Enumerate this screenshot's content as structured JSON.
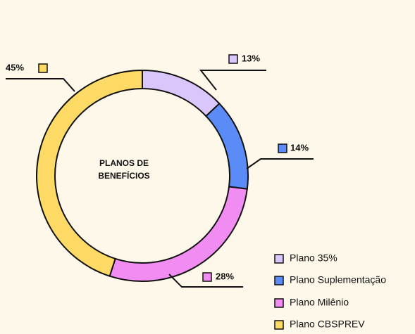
{
  "chart_data": {
    "type": "donut",
    "center_label": [
      "PLANOS DE",
      "BENEFÍCIOS"
    ],
    "categories": [
      "Plano 35%",
      "Plano Suplementação",
      "Plano Milênio",
      "Plano CBSPREV"
    ],
    "values": [
      13,
      14,
      28,
      45
    ],
    "value_labels": [
      "13%",
      "14%",
      "28%",
      "45%"
    ],
    "colors": [
      "#d9c6fb",
      "#5b8bf6",
      "#f18cf3",
      "#fdd966"
    ]
  }
}
